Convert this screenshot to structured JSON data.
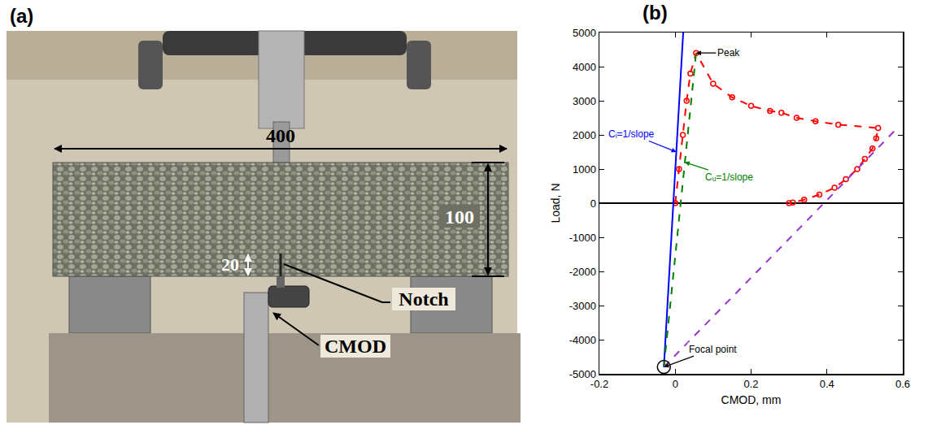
{
  "panel_a": {
    "label": "(a)",
    "beam_length": "400",
    "beam_depth": "100",
    "notch_depth": "20",
    "notch": "Notch",
    "gauge": "CMOD"
  },
  "chart_data": {
    "type": "scatter",
    "label": "(b)",
    "x_label": "CMOD, mm",
    "y_label": "Load, N",
    "xlim": [
      -0.2,
      0.6
    ],
    "xticks": [
      -0.2,
      0,
      0.2,
      0.4,
      0.6
    ],
    "ylim": [
      -5000,
      5000
    ],
    "yticks": [
      -5000,
      -4000,
      -3000,
      -2000,
      -1000,
      0,
      1000,
      2000,
      3000,
      4000,
      5000
    ],
    "grid": false,
    "series": [
      {
        "type": "line",
        "color": "#ff0000",
        "line_style": "dash",
        "marker": "circle",
        "x": [
          0,
          0.01,
          0.02,
          0.03,
          0.04,
          0.055,
          0.1,
          0.15,
          0.2,
          0.25,
          0.28,
          0.32,
          0.37,
          0.43,
          0.535,
          0.53,
          0.52,
          0.5,
          0.48,
          0.45,
          0.42,
          0.38,
          0.34,
          0.31,
          0.3
        ],
        "values": [
          0,
          1000,
          2000,
          3000,
          3800,
          4400,
          3500,
          3100,
          2850,
          2700,
          2650,
          2500,
          2400,
          2300,
          2200,
          1900,
          1600,
          1300,
          1000,
          700,
          450,
          250,
          100,
          20,
          0
        ]
      },
      {
        "type": "line",
        "color": "#0000ff",
        "line_style": "solid",
        "x": [
          -0.03,
          0.021
        ],
        "values": [
          -4800,
          5000
        ]
      },
      {
        "type": "line",
        "color": "#008000",
        "line_style": "dash",
        "x": [
          -0.03,
          0.055
        ],
        "values": [
          -4800,
          4400
        ]
      },
      {
        "type": "line",
        "color": "#9933cc",
        "line_style": "dash",
        "x": [
          -0.03,
          0.59
        ],
        "values": [
          -4800,
          2250
        ]
      },
      {
        "type": "scatter",
        "color": "#000000",
        "marker": "circle-open",
        "x": [
          -0.03
        ],
        "values": [
          -4800
        ]
      }
    ],
    "annotations": [
      {
        "text": "Peak",
        "x": 0.055,
        "y": 4400,
        "color": "#000000"
      },
      {
        "text": "Cᵢ=1/slope",
        "x": 0.003,
        "y": 1500,
        "color": "#0000ff"
      },
      {
        "text": "Cᵤ=1/slope",
        "x": 0.025,
        "y": 1200,
        "color": "#008000"
      },
      {
        "text": "Focal point",
        "x": -0.03,
        "y": -4800,
        "color": "#000000"
      }
    ]
  }
}
